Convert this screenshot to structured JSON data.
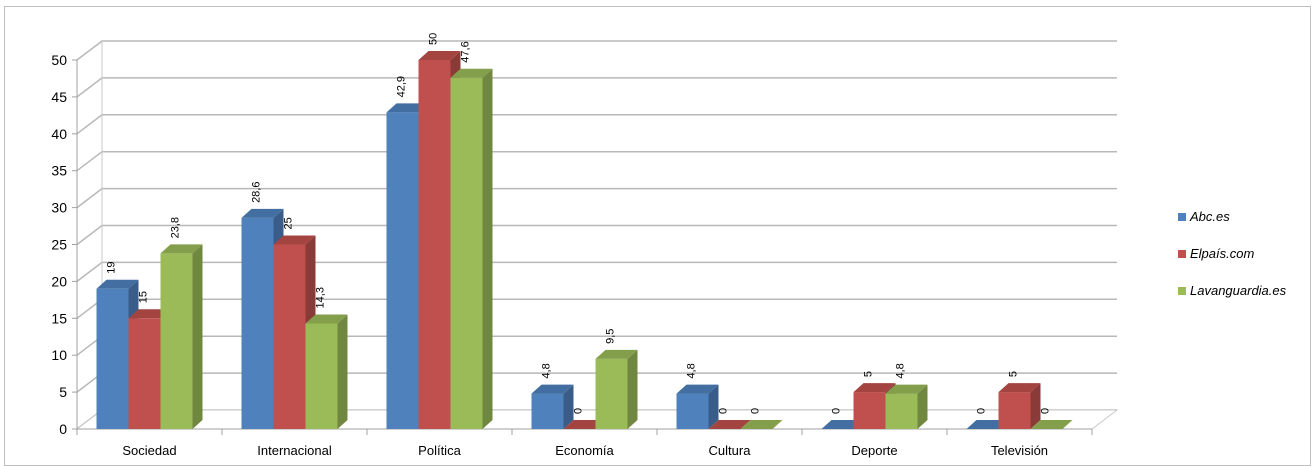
{
  "chart_data": {
    "type": "bar",
    "categories": [
      "Sociedad",
      "Internacional",
      "Política",
      "Economía",
      "Cultura",
      "Deporte",
      "Televisión"
    ],
    "series": [
      {
        "name": "Abc.es",
        "color": "#4f81bd",
        "values": [
          19,
          28.6,
          42.9,
          4.8,
          4.8,
          0,
          0
        ],
        "labels": [
          "19",
          "28,6",
          "42,9",
          "4,8",
          "4,8",
          "0",
          "0"
        ]
      },
      {
        "name": "Elpaís.com",
        "color": "#c0504d",
        "values": [
          15,
          25,
          50,
          0,
          0,
          5,
          5
        ],
        "labels": [
          "15",
          "25",
          "50",
          "0",
          "0",
          "5",
          "5"
        ]
      },
      {
        "name": "Lavanguardia.es",
        "color": "#9bbb59",
        "values": [
          23.8,
          14.3,
          47.6,
          9.5,
          0,
          4.8,
          0
        ],
        "labels": [
          "23,8",
          "14,3",
          "47,6",
          "9,5",
          "0",
          "4,8",
          "0"
        ]
      }
    ],
    "yticks": [
      "0",
      "5",
      "10",
      "15",
      "20",
      "25",
      "30",
      "35",
      "40",
      "45",
      "50"
    ],
    "ylim": [
      0,
      50
    ],
    "grid": true,
    "legend_position": "right",
    "style": "3d-clustered-column"
  }
}
